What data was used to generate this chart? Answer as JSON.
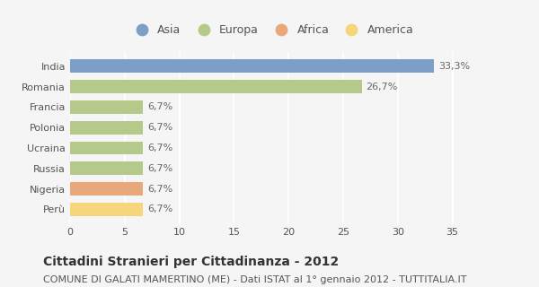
{
  "categories": [
    "India",
    "Romania",
    "Francia",
    "Polonia",
    "Ucraina",
    "Russia",
    "Nigeria",
    "Perù"
  ],
  "values": [
    33.3,
    26.7,
    6.7,
    6.7,
    6.7,
    6.7,
    6.7,
    6.7
  ],
  "labels": [
    "33,3%",
    "26,7%",
    "6,7%",
    "6,7%",
    "6,7%",
    "6,7%",
    "6,7%",
    "6,7%"
  ],
  "colors": [
    "#7b9fc7",
    "#b5c98a",
    "#b5c98a",
    "#b5c98a",
    "#b5c98a",
    "#b5c98a",
    "#e8a87c",
    "#f5d67a"
  ],
  "legend_labels": [
    "Asia",
    "Europa",
    "Africa",
    "America"
  ],
  "legend_colors": [
    "#7b9fc7",
    "#b5c98a",
    "#e8a87c",
    "#f5d67a"
  ],
  "xlim": [
    0,
    37
  ],
  "xticks": [
    0,
    5,
    10,
    15,
    20,
    25,
    30,
    35
  ],
  "title": "Cittadini Stranieri per Cittadinanza - 2012",
  "subtitle": "COMUNE DI GALATI MAMERTINO (ME) - Dati ISTAT al 1° gennaio 2012 - TUTTITALIA.IT",
  "bg_color": "#f5f5f5",
  "bar_height": 0.65,
  "title_fontsize": 10,
  "subtitle_fontsize": 8,
  "label_fontsize": 8,
  "tick_fontsize": 8,
  "legend_fontsize": 9
}
